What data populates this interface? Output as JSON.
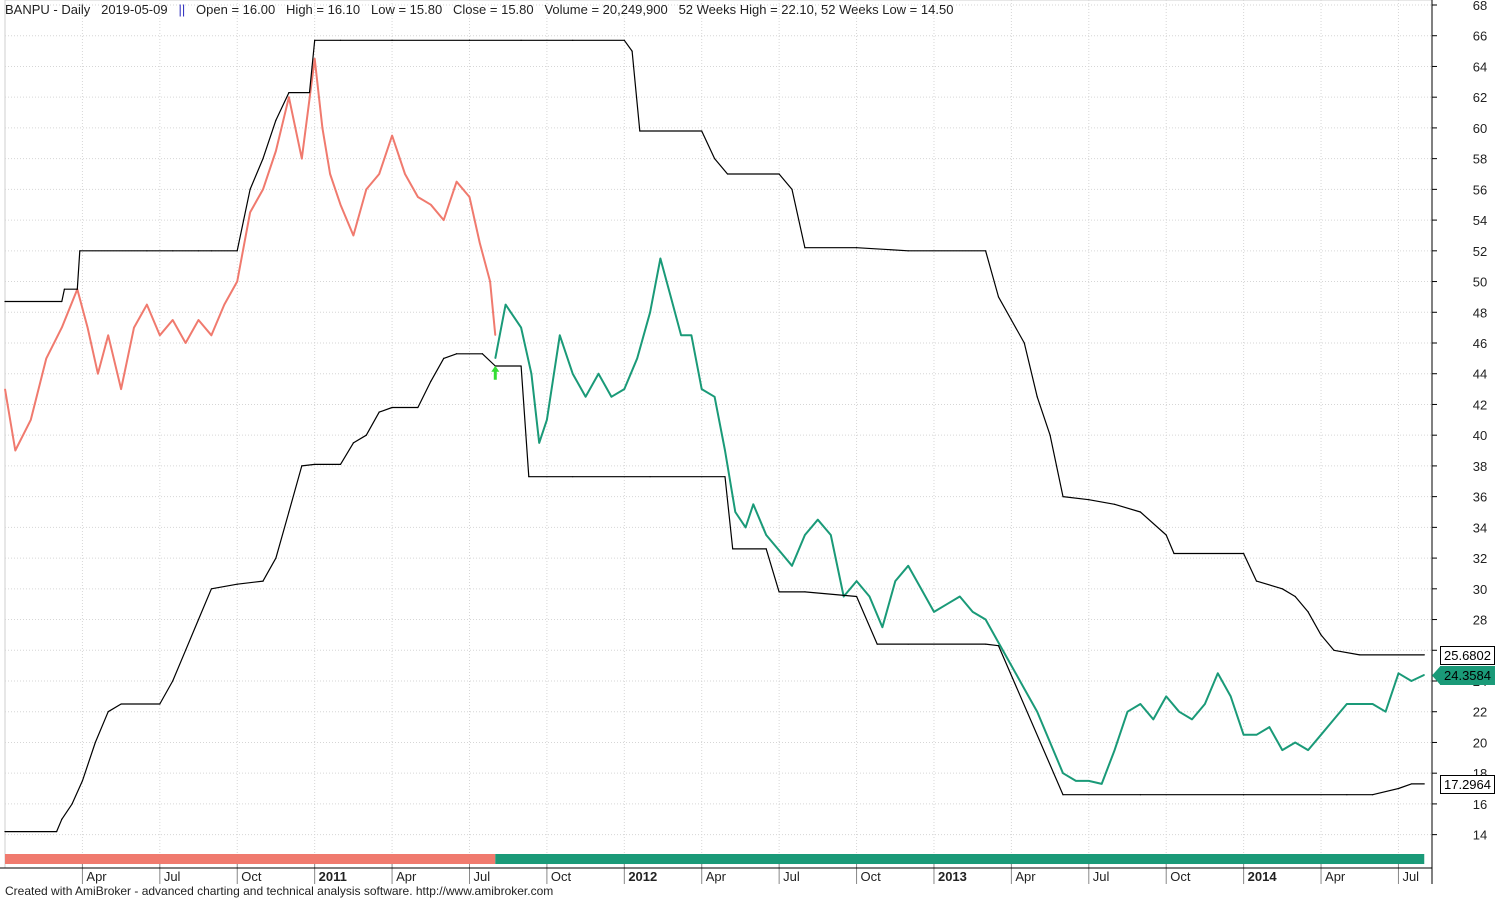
{
  "header": {
    "symbol": "BANPU - Daily",
    "date": "2019-05-09",
    "separator": "||",
    "open": "Open = 16.00",
    "high": "High = 16.10",
    "low": "Low = 15.80",
    "close": "Close = 15.80",
    "volume": "Volume = 20,249,900",
    "weeks52": "52 Weeks High = 22.10, 52 Weeks Low = 14.50"
  },
  "footer": "Created with AmiBroker - advanced charting and technical analysis software. http://www.amibroker.com",
  "chart_data": {
    "type": "line",
    "title": "BANPU - Daily",
    "yaxis": {
      "min": 13,
      "max": 68,
      "ticks": [
        14,
        16,
        18,
        20,
        22,
        24,
        26,
        28,
        30,
        32,
        34,
        36,
        38,
        40,
        42,
        44,
        46,
        48,
        50,
        52,
        54,
        56,
        58,
        60,
        62,
        64,
        66,
        68
      ],
      "position": "right"
    },
    "xaxis": {
      "labels": [
        {
          "t": "Apr",
          "m": 3,
          "bold": false
        },
        {
          "t": "Jul",
          "m": 6,
          "bold": false
        },
        {
          "t": "Oct",
          "m": 9,
          "bold": false
        },
        {
          "t": "2011",
          "m": 12,
          "bold": true
        },
        {
          "t": "Apr",
          "m": 15,
          "bold": false
        },
        {
          "t": "Jul",
          "m": 18,
          "bold": false
        },
        {
          "t": "Oct",
          "m": 21,
          "bold": false
        },
        {
          "t": "2012",
          "m": 24,
          "bold": true
        },
        {
          "t": "Apr",
          "m": 27,
          "bold": false
        },
        {
          "t": "Jul",
          "m": 30,
          "bold": false
        },
        {
          "t": "Oct",
          "m": 33,
          "bold": false
        },
        {
          "t": "2013",
          "m": 36,
          "bold": true
        },
        {
          "t": "Apr",
          "m": 39,
          "bold": false
        },
        {
          "t": "Jul",
          "m": 42,
          "bold": false
        },
        {
          "t": "Oct",
          "m": 45,
          "bold": false
        },
        {
          "t": "2014",
          "m": 48,
          "bold": true
        },
        {
          "t": "Apr",
          "m": 51,
          "bold": false
        },
        {
          "t": "Jul",
          "m": 54,
          "bold": false
        }
      ]
    },
    "series": [
      {
        "color": "#f07a6e",
        "points": [
          [
            0.0,
            43.0
          ],
          [
            0.4,
            39.0
          ],
          [
            1.0,
            41.0
          ],
          [
            1.6,
            45.0
          ],
          [
            2.2,
            47.0
          ],
          [
            2.8,
            49.5
          ],
          [
            3.2,
            47.0
          ],
          [
            3.6,
            44.0
          ],
          [
            4.0,
            46.5
          ],
          [
            4.5,
            43.0
          ],
          [
            5.0,
            47.0
          ],
          [
            5.5,
            48.5
          ],
          [
            6.0,
            46.5
          ],
          [
            6.5,
            47.5
          ],
          [
            7.0,
            46.0
          ],
          [
            7.5,
            47.5
          ],
          [
            8.0,
            46.5
          ],
          [
            8.5,
            48.5
          ],
          [
            9.0,
            50.0
          ],
          [
            9.5,
            54.5
          ],
          [
            10.0,
            56.0
          ],
          [
            10.5,
            58.5
          ],
          [
            11.0,
            62.0
          ],
          [
            11.5,
            58.0
          ],
          [
            12.0,
            64.5
          ],
          [
            12.3,
            60.0
          ],
          [
            12.6,
            57.0
          ],
          [
            13.0,
            55.0
          ],
          [
            13.5,
            53.0
          ],
          [
            14.0,
            56.0
          ],
          [
            14.5,
            57.0
          ],
          [
            15.0,
            59.5
          ],
          [
            15.5,
            57.0
          ],
          [
            16.0,
            55.5
          ],
          [
            16.5,
            55.0
          ],
          [
            17.0,
            54.0
          ],
          [
            17.5,
            56.5
          ],
          [
            18.0,
            55.5
          ],
          [
            18.4,
            52.5
          ],
          [
            18.8,
            50.0
          ],
          [
            19.0,
            46.5
          ]
        ]
      },
      {
        "color": "#1a9a78",
        "points": [
          [
            19.0,
            45.0
          ],
          [
            19.4,
            48.5
          ],
          [
            20.0,
            47.0
          ],
          [
            20.4,
            44.0
          ],
          [
            20.7,
            39.5
          ],
          [
            21.0,
            41.0
          ],
          [
            21.5,
            46.5
          ],
          [
            22.0,
            44.0
          ],
          [
            22.5,
            42.5
          ],
          [
            23.0,
            44.0
          ],
          [
            23.5,
            42.5
          ],
          [
            24.0,
            43.0
          ],
          [
            24.5,
            45.0
          ],
          [
            25.0,
            48.0
          ],
          [
            25.4,
            51.5
          ],
          [
            25.8,
            49.0
          ],
          [
            26.2,
            46.5
          ],
          [
            26.6,
            46.5
          ],
          [
            27.0,
            43.0
          ],
          [
            27.5,
            42.5
          ],
          [
            27.9,
            39.0
          ],
          [
            28.3,
            35.0
          ],
          [
            28.7,
            34.0
          ],
          [
            29.0,
            35.5
          ],
          [
            29.5,
            33.5
          ],
          [
            30.0,
            32.5
          ],
          [
            30.5,
            31.5
          ],
          [
            31.0,
            33.5
          ],
          [
            31.5,
            34.5
          ],
          [
            32.0,
            33.5
          ],
          [
            32.5,
            29.5
          ],
          [
            33.0,
            30.5
          ],
          [
            33.5,
            29.5
          ],
          [
            34.0,
            27.5
          ],
          [
            34.5,
            30.5
          ],
          [
            35.0,
            31.5
          ],
          [
            35.5,
            30.0
          ],
          [
            36.0,
            28.5
          ],
          [
            36.5,
            29.0
          ],
          [
            37.0,
            29.5
          ],
          [
            37.5,
            28.5
          ],
          [
            38.0,
            28.0
          ],
          [
            38.5,
            26.5
          ],
          [
            39.0,
            25.0
          ],
          [
            39.5,
            23.5
          ],
          [
            40.0,
            22.0
          ],
          [
            40.5,
            20.0
          ],
          [
            41.0,
            18.0
          ],
          [
            41.5,
            17.5
          ],
          [
            42.0,
            17.5
          ],
          [
            42.5,
            17.3
          ],
          [
            43.0,
            19.5
          ],
          [
            43.5,
            22.0
          ],
          [
            44.0,
            22.5
          ],
          [
            44.5,
            21.5
          ],
          [
            45.0,
            23.0
          ],
          [
            45.5,
            22.0
          ],
          [
            46.0,
            21.5
          ],
          [
            46.5,
            22.5
          ],
          [
            47.0,
            24.5
          ],
          [
            47.5,
            23.0
          ],
          [
            48.0,
            20.5
          ],
          [
            48.5,
            20.5
          ],
          [
            49.0,
            21.0
          ],
          [
            49.5,
            19.5
          ],
          [
            50.0,
            20.0
          ],
          [
            50.5,
            19.5
          ],
          [
            51.0,
            20.5
          ],
          [
            51.5,
            21.5
          ],
          [
            52.0,
            22.5
          ],
          [
            52.5,
            22.5
          ],
          [
            53.0,
            22.5
          ],
          [
            53.5,
            22.0
          ],
          [
            54.0,
            24.5
          ],
          [
            54.5,
            24.0
          ],
          [
            55.0,
            24.4
          ]
        ]
      },
      {
        "color": "#000000",
        "points": [
          [
            0.0,
            48.7
          ],
          [
            2.2,
            48.7
          ],
          [
            2.3,
            49.5
          ],
          [
            2.8,
            49.5
          ],
          [
            2.9,
            52.0
          ],
          [
            5.5,
            52.0
          ],
          [
            6.5,
            52.0
          ],
          [
            7.5,
            52.0
          ],
          [
            8.0,
            52.0
          ],
          [
            9.0,
            52.0
          ],
          [
            9.5,
            56.0
          ],
          [
            10.0,
            58.0
          ],
          [
            10.5,
            60.5
          ],
          [
            11.0,
            62.3
          ],
          [
            11.8,
            62.3
          ],
          [
            12.0,
            65.7
          ],
          [
            13.0,
            65.7
          ],
          [
            15.0,
            65.7
          ],
          [
            18.0,
            65.7
          ],
          [
            20.0,
            65.7
          ],
          [
            22.0,
            65.7
          ],
          [
            24.0,
            65.7
          ],
          [
            24.3,
            65.0
          ],
          [
            24.6,
            59.8
          ],
          [
            27.0,
            59.8
          ],
          [
            27.5,
            58.0
          ],
          [
            28.0,
            57.0
          ],
          [
            30.0,
            57.0
          ],
          [
            30.5,
            56.0
          ],
          [
            31.0,
            52.2
          ],
          [
            33.0,
            52.2
          ],
          [
            35.0,
            52.0
          ],
          [
            38.0,
            52.0
          ],
          [
            38.5,
            49.0
          ],
          [
            39.0,
            47.5
          ],
          [
            39.5,
            46.0
          ],
          [
            40.0,
            42.5
          ],
          [
            40.5,
            40.0
          ],
          [
            41.0,
            36.0
          ],
          [
            42.0,
            35.8
          ],
          [
            43.0,
            35.5
          ],
          [
            44.0,
            35.0
          ],
          [
            45.0,
            33.5
          ],
          [
            45.3,
            32.3
          ],
          [
            48.0,
            32.3
          ],
          [
            48.5,
            30.5
          ],
          [
            49.5,
            30.0
          ],
          [
            50.0,
            29.5
          ],
          [
            50.5,
            28.5
          ],
          [
            51.0,
            27.0
          ],
          [
            51.5,
            26.0
          ],
          [
            52.5,
            25.7
          ],
          [
            55.0,
            25.7
          ]
        ]
      },
      {
        "color": "#000000",
        "points": [
          [
            0.0,
            14.2
          ],
          [
            2.0,
            14.2
          ],
          [
            2.2,
            15.0
          ],
          [
            2.6,
            16.0
          ],
          [
            3.0,
            17.5
          ],
          [
            3.5,
            20.0
          ],
          [
            4.0,
            22.0
          ],
          [
            4.5,
            22.5
          ],
          [
            6.0,
            22.5
          ],
          [
            6.5,
            24.0
          ],
          [
            7.0,
            26.0
          ],
          [
            7.5,
            28.0
          ],
          [
            8.0,
            30.0
          ],
          [
            9.0,
            30.3
          ],
          [
            10.0,
            30.5
          ],
          [
            10.5,
            32.0
          ],
          [
            11.0,
            35.0
          ],
          [
            11.5,
            38.0
          ],
          [
            12.0,
            38.1
          ],
          [
            13.0,
            38.1
          ],
          [
            13.5,
            39.5
          ],
          [
            14.0,
            40.0
          ],
          [
            14.5,
            41.5
          ],
          [
            15.0,
            41.8
          ],
          [
            16.0,
            41.8
          ],
          [
            16.5,
            43.5
          ],
          [
            17.0,
            45.0
          ],
          [
            17.5,
            45.3
          ],
          [
            18.5,
            45.3
          ],
          [
            19.0,
            44.5
          ],
          [
            20.0,
            44.5
          ],
          [
            20.3,
            37.3
          ],
          [
            22.0,
            37.3
          ],
          [
            25.0,
            37.3
          ],
          [
            27.9,
            37.3
          ],
          [
            28.2,
            32.6
          ],
          [
            29.5,
            32.6
          ],
          [
            30.0,
            29.8
          ],
          [
            31.0,
            29.8
          ],
          [
            33.0,
            29.5
          ],
          [
            33.8,
            26.4
          ],
          [
            35.0,
            26.4
          ],
          [
            38.0,
            26.4
          ],
          [
            38.5,
            26.3
          ],
          [
            41.0,
            16.6
          ],
          [
            44.0,
            16.6
          ],
          [
            48.0,
            16.6
          ],
          [
            52.0,
            16.6
          ],
          [
            53.0,
            16.6
          ],
          [
            54.0,
            17.0
          ],
          [
            54.5,
            17.3
          ],
          [
            55.0,
            17.3
          ]
        ]
      }
    ],
    "markers": [
      {
        "x": 19.0,
        "y": 44.0,
        "color": "#33dd33",
        "type": "up-arrow"
      }
    ],
    "value_labels": [
      {
        "text": "25.6802",
        "y": 25.68,
        "bg": "#ffffff",
        "fg": "#000000",
        "border": "#000000"
      },
      {
        "text": "24.3584",
        "y": 24.36,
        "bg": "#1a9a78",
        "fg": "#000000",
        "border": "#1a9a78"
      },
      {
        "text": "17.2964",
        "y": 17.3,
        "bg": "#ffffff",
        "fg": "#000000",
        "border": "#000000"
      }
    ],
    "ribbon": [
      {
        "from": 0,
        "to": 19.0,
        "color": "#f07a6e"
      },
      {
        "from": 19.0,
        "to": 55.0,
        "color": "#1a9a78"
      }
    ],
    "grid": true
  }
}
